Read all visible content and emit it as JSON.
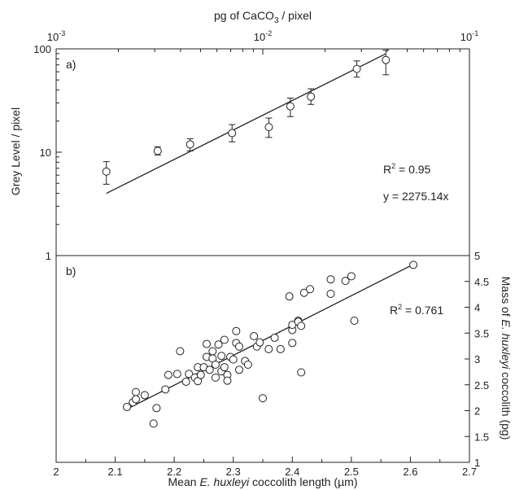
{
  "chart_data": [
    {
      "panel": "a)",
      "type": "scatter",
      "top_axis": {
        "label_parts": [
          "pg of CaCO",
          "3",
          " / pixel"
        ],
        "scale": "log",
        "lim": [
          0.001,
          0.1
        ],
        "ticks": [
          {
            "value": 0.001,
            "base": "10",
            "exp": "-3"
          },
          {
            "value": 0.01,
            "base": "10",
            "exp": "-2"
          },
          {
            "value": 0.1,
            "base": "10",
            "exp": "-1"
          }
        ]
      },
      "left_axis": {
        "label": "Grey Level / pixel",
        "scale": "log",
        "lim": [
          1,
          100
        ],
        "ticks": [
          {
            "value": 1,
            "label": "1"
          },
          {
            "value": 10,
            "label": "10"
          },
          {
            "value": 100,
            "label": "100"
          }
        ]
      },
      "points": [
        {
          "x": 0.00175,
          "y": 6.5,
          "lo": 4.9,
          "hi": 8.1
        },
        {
          "x": 0.0031,
          "y": 10.3,
          "lo": 9.4,
          "hi": 11.3
        },
        {
          "x": 0.00445,
          "y": 11.9,
          "lo": 10.3,
          "hi": 13.5
        },
        {
          "x": 0.0071,
          "y": 15.3,
          "lo": 12.6,
          "hi": 18.5
        },
        {
          "x": 0.0107,
          "y": 17.5,
          "lo": 13.9,
          "hi": 21.4
        },
        {
          "x": 0.0136,
          "y": 27.8,
          "lo": 22.1,
          "hi": 33.4
        },
        {
          "x": 0.0171,
          "y": 34.5,
          "lo": 29.0,
          "hi": 41.1
        },
        {
          "x": 0.0285,
          "y": 64.0,
          "lo": 53.2,
          "hi": 76.4
        },
        {
          "x": 0.0394,
          "y": 78.0,
          "lo": 56.1,
          "hi": 97.0
        }
      ],
      "fit": {
        "x": [
          0.00175,
          0.0394
        ],
        "y": [
          4.0,
          89.6
        ]
      },
      "annotations": {
        "r2_parts": [
          "R",
          "2",
          " = 0.95"
        ],
        "equation": "y = 2275.14x"
      }
    },
    {
      "panel": "b)",
      "type": "scatter",
      "xaxis": {
        "label_parts": [
          "Mean ",
          "E. huxleyi",
          " coccolith length (µm)"
        ],
        "lim": [
          2.0,
          2.7
        ],
        "ticks": [
          "2",
          "2.1",
          "2.2",
          "2.3",
          "2.4",
          "2.5",
          "2.6",
          "2.7"
        ]
      },
      "right_axis": {
        "label_parts": [
          "Mass of ",
          "E. huxleyi",
          " coccolith (pg)"
        ],
        "lim": [
          1,
          5
        ],
        "ticks": [
          "1",
          "1.5",
          "2",
          "2.5",
          "3",
          "3.5",
          "4",
          "4.5",
          "5"
        ]
      },
      "points": [
        [
          2.12,
          2.07
        ],
        [
          2.13,
          2.16
        ],
        [
          2.135,
          2.22
        ],
        [
          2.135,
          2.36
        ],
        [
          2.15,
          2.3
        ],
        [
          2.165,
          1.75
        ],
        [
          2.17,
          2.05
        ],
        [
          2.185,
          2.41
        ],
        [
          2.19,
          2.69
        ],
        [
          2.205,
          2.71
        ],
        [
          2.21,
          3.15
        ],
        [
          2.22,
          2.56
        ],
        [
          2.225,
          2.71
        ],
        [
          2.235,
          2.64
        ],
        [
          2.24,
          2.84
        ],
        [
          2.24,
          2.57
        ],
        [
          2.245,
          2.69
        ],
        [
          2.25,
          2.84
        ],
        [
          2.255,
          3.29
        ],
        [
          2.255,
          3.04
        ],
        [
          2.26,
          2.79
        ],
        [
          2.265,
          3.01
        ],
        [
          2.265,
          3.15
        ],
        [
          2.27,
          2.64
        ],
        [
          2.27,
          2.89
        ],
        [
          2.275,
          3.28
        ],
        [
          2.28,
          2.76
        ],
        [
          2.28,
          3.06
        ],
        [
          2.285,
          3.37
        ],
        [
          2.285,
          2.84
        ],
        [
          2.29,
          2.69
        ],
        [
          2.29,
          2.58
        ],
        [
          2.295,
          3.04
        ],
        [
          2.3,
          2.99
        ],
        [
          2.305,
          3.54
        ],
        [
          2.305,
          3.31
        ],
        [
          2.31,
          3.24
        ],
        [
          2.31,
          2.79
        ],
        [
          2.32,
          2.96
        ],
        [
          2.325,
          2.89
        ],
        [
          2.335,
          3.44
        ],
        [
          2.34,
          3.24
        ],
        [
          2.345,
          3.32
        ],
        [
          2.35,
          2.24
        ],
        [
          2.36,
          3.19
        ],
        [
          2.37,
          3.41
        ],
        [
          2.38,
          3.19
        ],
        [
          2.395,
          4.21
        ],
        [
          2.4,
          3.56
        ],
        [
          2.4,
          3.66
        ],
        [
          2.4,
          3.31
        ],
        [
          2.41,
          3.74
        ],
        [
          2.41,
          3.72
        ],
        [
          2.415,
          3.64
        ],
        [
          2.415,
          2.74
        ],
        [
          2.42,
          4.28
        ],
        [
          2.43,
          4.35
        ],
        [
          2.465,
          4.26
        ],
        [
          2.465,
          4.54
        ],
        [
          2.49,
          4.51
        ],
        [
          2.5,
          4.6
        ],
        [
          2.505,
          3.74
        ],
        [
          2.605,
          4.82
        ]
      ],
      "fit": {
        "x": [
          2.12,
          2.605
        ],
        "y": [
          2.03,
          4.83
        ]
      },
      "annotations": {
        "r2_parts": [
          "R",
          "2",
          " = 0.761"
        ]
      }
    }
  ]
}
